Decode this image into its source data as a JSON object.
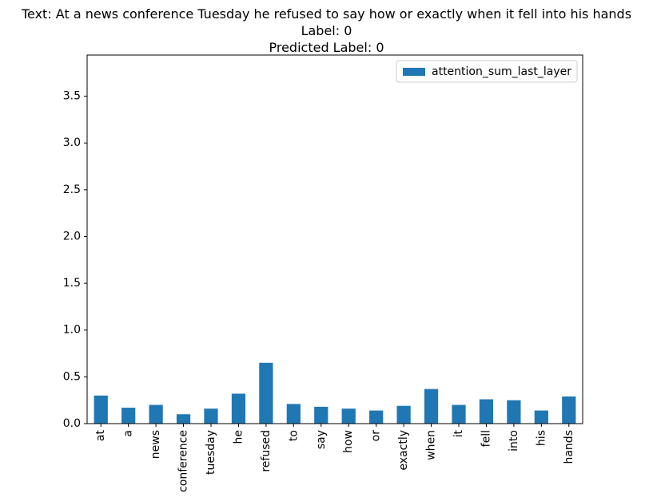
{
  "chart_data": {
    "type": "bar",
    "title_lines": [
      "Text: At a news conference Tuesday he refused to say how or exactly when it fell into his hands",
      "Label: 0",
      "Predicted Label: 0"
    ],
    "categories": [
      "at",
      "a",
      "news",
      "conference",
      "tuesday",
      "he",
      "refused",
      "to",
      "say",
      "how",
      "or",
      "exactly",
      "when",
      "it",
      "fell",
      "into",
      "his",
      "hands"
    ],
    "series": [
      {
        "name": "attention_sum_last_layer",
        "color": "#1f77b4",
        "values": [
          0.3,
          0.17,
          0.2,
          0.1,
          0.16,
          0.32,
          0.65,
          0.21,
          0.18,
          0.16,
          0.14,
          0.19,
          0.37,
          0.2,
          0.26,
          0.25,
          0.14,
          0.29
        ]
      }
    ],
    "yticks": [
      "0.0",
      "0.5",
      "1.0",
      "1.5",
      "2.0",
      "2.5",
      "3.0",
      "3.5"
    ],
    "ylim": [
      0,
      3.94
    ],
    "xlabel": "",
    "ylabel": "",
    "legend_position": "top-right",
    "grid": false
  }
}
